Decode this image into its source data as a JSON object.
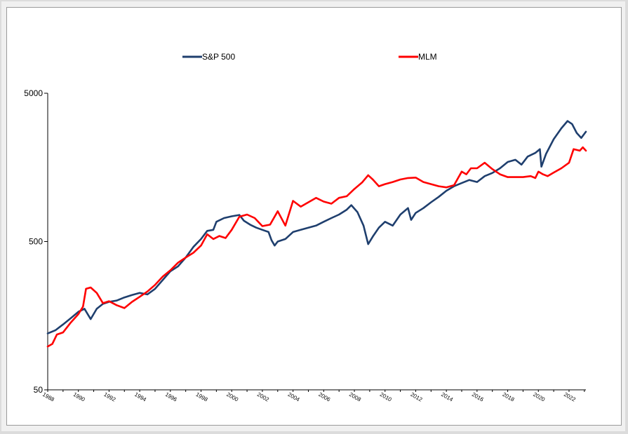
{
  "chart_data": {
    "type": "line",
    "yscale": "log",
    "ylim": [
      50,
      5000
    ],
    "xlim": [
      1988,
      2023.1
    ],
    "y_ticks": [
      {
        "value": 50,
        "label": "50"
      },
      {
        "value": 500,
        "label": "500"
      },
      {
        "value": 5000,
        "label": "5000"
      }
    ],
    "x_ticks": [
      {
        "value": 1988,
        "label": "1988"
      },
      {
        "value": 1990,
        "label": "1990"
      },
      {
        "value": 1992,
        "label": "1992"
      },
      {
        "value": 1994,
        "label": "1994"
      },
      {
        "value": 1996,
        "label": "1996"
      },
      {
        "value": 1998,
        "label": "1998"
      },
      {
        "value": 2000,
        "label": "2000"
      },
      {
        "value": 2002,
        "label": "2002"
      },
      {
        "value": 2004,
        "label": "2004"
      },
      {
        "value": 2006,
        "label": "2006"
      },
      {
        "value": 2008,
        "label": "2008"
      },
      {
        "value": 2010,
        "label": "2010"
      },
      {
        "value": 2012,
        "label": "2012"
      },
      {
        "value": 2014,
        "label": "2014"
      },
      {
        "value": 2016,
        "label": "2016"
      },
      {
        "value": 2018,
        "label": "2018"
      },
      {
        "value": 2020,
        "label": "2020"
      },
      {
        "value": 2022,
        "label": "2022"
      }
    ],
    "legend_position": "top",
    "grid": false,
    "series": [
      {
        "name": "S&P 500",
        "color": "#1f3f6e",
        "points": [
          [
            1988.0,
            120
          ],
          [
            1988.5,
            126
          ],
          [
            1989.0,
            138
          ],
          [
            1989.5,
            152
          ],
          [
            1990.0,
            168
          ],
          [
            1990.4,
            176
          ],
          [
            1990.8,
            150
          ],
          [
            1991.2,
            176
          ],
          [
            1991.6,
            190
          ],
          [
            1992.0,
            196
          ],
          [
            1992.5,
            200
          ],
          [
            1993.0,
            210
          ],
          [
            1993.5,
            218
          ],
          [
            1994.0,
            225
          ],
          [
            1994.5,
            220
          ],
          [
            1995.0,
            240
          ],
          [
            1995.5,
            275
          ],
          [
            1996.0,
            315
          ],
          [
            1996.5,
            340
          ],
          [
            1997.0,
            390
          ],
          [
            1997.5,
            460
          ],
          [
            1998.0,
            520
          ],
          [
            1998.4,
            590
          ],
          [
            1998.8,
            600
          ],
          [
            1999.0,
            680
          ],
          [
            1999.5,
            720
          ],
          [
            2000.0,
            740
          ],
          [
            2000.5,
            755
          ],
          [
            2000.8,
            690
          ],
          [
            2001.2,
            650
          ],
          [
            2001.6,
            620
          ],
          [
            2002.0,
            600
          ],
          [
            2002.4,
            580
          ],
          [
            2002.6,
            510
          ],
          [
            2002.8,
            470
          ],
          [
            2003.0,
            500
          ],
          [
            2003.5,
            520
          ],
          [
            2004.0,
            580
          ],
          [
            2004.5,
            600
          ],
          [
            2005.0,
            620
          ],
          [
            2005.5,
            640
          ],
          [
            2006.0,
            680
          ],
          [
            2006.5,
            720
          ],
          [
            2007.0,
            760
          ],
          [
            2007.5,
            820
          ],
          [
            2007.8,
            880
          ],
          [
            2008.2,
            790
          ],
          [
            2008.6,
            640
          ],
          [
            2008.9,
            480
          ],
          [
            2009.2,
            540
          ],
          [
            2009.6,
            620
          ],
          [
            2010.0,
            680
          ],
          [
            2010.5,
            640
          ],
          [
            2011.0,
            760
          ],
          [
            2011.5,
            840
          ],
          [
            2011.7,
            700
          ],
          [
            2012.0,
            780
          ],
          [
            2012.5,
            840
          ],
          [
            2013.0,
            920
          ],
          [
            2013.5,
            1000
          ],
          [
            2014.0,
            1100
          ],
          [
            2014.5,
            1180
          ],
          [
            2015.0,
            1240
          ],
          [
            2015.5,
            1300
          ],
          [
            2016.0,
            1260
          ],
          [
            2016.5,
            1380
          ],
          [
            2017.0,
            1450
          ],
          [
            2017.5,
            1560
          ],
          [
            2018.0,
            1720
          ],
          [
            2018.5,
            1780
          ],
          [
            2018.9,
            1650
          ],
          [
            2019.3,
            1870
          ],
          [
            2019.8,
            1980
          ],
          [
            2020.1,
            2100
          ],
          [
            2020.2,
            1600
          ],
          [
            2020.5,
            1950
          ],
          [
            2021.0,
            2450
          ],
          [
            2021.5,
            2900
          ],
          [
            2021.9,
            3250
          ],
          [
            2022.2,
            3100
          ],
          [
            2022.5,
            2700
          ],
          [
            2022.8,
            2500
          ],
          [
            2023.1,
            2750
          ]
        ]
      },
      {
        "name": "MLM",
        "color": "#ff0000",
        "points": [
          [
            1988.0,
            98
          ],
          [
            1988.3,
            102
          ],
          [
            1988.6,
            118
          ],
          [
            1989.0,
            122
          ],
          [
            1989.5,
            142
          ],
          [
            1990.0,
            162
          ],
          [
            1990.3,
            182
          ],
          [
            1990.5,
            240
          ],
          [
            1990.8,
            245
          ],
          [
            1991.2,
            225
          ],
          [
            1991.6,
            192
          ],
          [
            1992.0,
            198
          ],
          [
            1992.5,
            186
          ],
          [
            1993.0,
            178
          ],
          [
            1993.5,
            196
          ],
          [
            1994.0,
            212
          ],
          [
            1994.5,
            230
          ],
          [
            1995.0,
            255
          ],
          [
            1995.5,
            290
          ],
          [
            1996.0,
            320
          ],
          [
            1996.5,
            360
          ],
          [
            1997.0,
            390
          ],
          [
            1997.5,
            420
          ],
          [
            1998.0,
            470
          ],
          [
            1998.4,
            560
          ],
          [
            1998.8,
            520
          ],
          [
            1999.2,
            545
          ],
          [
            1999.6,
            528
          ],
          [
            2000.0,
            600
          ],
          [
            2000.5,
            735
          ],
          [
            2001.0,
            760
          ],
          [
            2001.5,
            720
          ],
          [
            2002.0,
            635
          ],
          [
            2002.5,
            650
          ],
          [
            2003.0,
            800
          ],
          [
            2003.5,
            640
          ],
          [
            2004.0,
            940
          ],
          [
            2004.5,
            860
          ],
          [
            2005.0,
            920
          ],
          [
            2005.5,
            985
          ],
          [
            2006.0,
            930
          ],
          [
            2006.5,
            900
          ],
          [
            2007.0,
            985
          ],
          [
            2007.5,
            1010
          ],
          [
            2008.0,
            1130
          ],
          [
            2008.5,
            1250
          ],
          [
            2008.9,
            1400
          ],
          [
            2009.2,
            1310
          ],
          [
            2009.6,
            1180
          ],
          [
            2010.0,
            1220
          ],
          [
            2010.5,
            1260
          ],
          [
            2011.0,
            1310
          ],
          [
            2011.5,
            1340
          ],
          [
            2012.0,
            1350
          ],
          [
            2012.5,
            1260
          ],
          [
            2013.0,
            1220
          ],
          [
            2013.5,
            1180
          ],
          [
            2014.0,
            1160
          ],
          [
            2014.5,
            1200
          ],
          [
            2015.0,
            1480
          ],
          [
            2015.3,
            1420
          ],
          [
            2015.6,
            1560
          ],
          [
            2016.0,
            1560
          ],
          [
            2016.5,
            1700
          ],
          [
            2017.0,
            1540
          ],
          [
            2017.5,
            1420
          ],
          [
            2018.0,
            1360
          ],
          [
            2018.5,
            1360
          ],
          [
            2019.0,
            1360
          ],
          [
            2019.5,
            1380
          ],
          [
            2019.8,
            1340
          ],
          [
            2020.0,
            1480
          ],
          [
            2020.3,
            1420
          ],
          [
            2020.6,
            1380
          ],
          [
            2021.0,
            1460
          ],
          [
            2021.5,
            1560
          ],
          [
            2022.0,
            1700
          ],
          [
            2022.3,
            2100
          ],
          [
            2022.7,
            2050
          ],
          [
            2022.9,
            2160
          ],
          [
            2023.1,
            2050
          ]
        ]
      }
    ]
  }
}
